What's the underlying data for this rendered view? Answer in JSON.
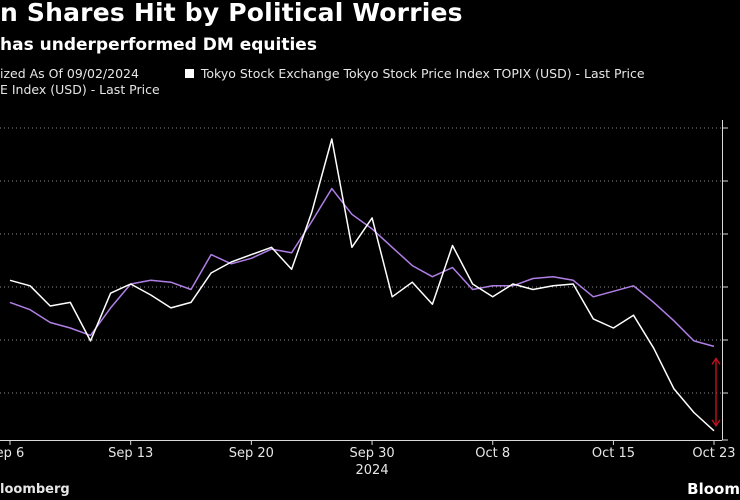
{
  "title": "n Shares Hit by Political Worries",
  "subtitle": "has underperformed DM equities",
  "legend": {
    "line1_left": "ized As Of 09/02/2024",
    "line1_right": "Tokyo Stock Exchange Tokyo Stock Price Index TOPIX (USD) - Last Price",
    "line2": "E Index (USD) - Last Price"
  },
  "footer": {
    "source": "loomberg",
    "brand": "Bloom"
  },
  "colors": {
    "topix": "#ffffff",
    "other": "#b07fe6",
    "arrow": "#c8141e",
    "grid": "#8a8a8a"
  },
  "chart_data": {
    "type": "line",
    "x_tick_labels": [
      "ep 6",
      "Sep 13",
      "Sep 20",
      "Sep 30",
      "Oct 8",
      "Oct 15",
      "Oct 23"
    ],
    "x_year_label": "2024",
    "grid": true,
    "series": [
      {
        "name": "Tokyo Stock Exchange Tokyo Stock Price Index TOPIX (USD) - Last Price",
        "color": "#ffffff",
        "values": [
          6.2,
          5.9,
          4.8,
          5.0,
          2.9,
          5.5,
          6.0,
          5.4,
          4.7,
          5.0,
          6.6,
          7.2,
          7.6,
          8.0,
          6.8,
          9.9,
          13.9,
          8.0,
          9.6,
          5.3,
          6.1,
          4.9,
          8.1,
          6.0,
          5.3,
          6.0,
          5.7,
          5.9,
          6.0,
          4.1,
          3.6,
          4.3,
          2.5,
          0.3,
          -1.0,
          -2.0
        ],
        "marker": "square"
      },
      {
        "name": "E Index (USD) - Last Price",
        "color": "#b07fe6",
        "values": [
          5.0,
          4.6,
          3.9,
          3.6,
          3.2,
          4.7,
          6.0,
          6.2,
          6.1,
          5.7,
          7.6,
          7.1,
          7.4,
          7.9,
          7.7,
          9.4,
          11.2,
          9.8,
          9.0,
          8.0,
          7.0,
          6.4,
          6.9,
          5.7,
          5.9,
          5.9,
          6.3,
          6.4,
          6.2,
          5.3,
          5.6,
          5.9,
          5.0,
          4.0,
          2.9,
          2.6
        ]
      }
    ],
    "tick_index_positions": [
      0,
      6,
      12,
      18,
      24,
      30,
      35
    ]
  }
}
